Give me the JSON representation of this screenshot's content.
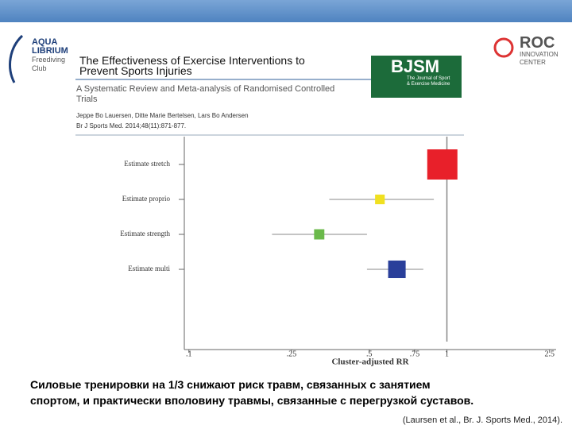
{
  "header": {
    "logo_left": [
      "AQUA",
      "LIBRIUM",
      "Freediving",
      "Club"
    ],
    "title": "The Effectiveness of Exercise Interventions to Prevent Sports Injuries",
    "subtitle": "A Systematic Review and Meta-analysis of Randomised Controlled Trials",
    "authors": "Jeppe Bo Lauersen, Ditte Marie Bertelsen, Lars Bo Andersen",
    "journal": "Br J Sports Med. 2014;48(11):871-877.",
    "journal_logo": [
      "BJSM",
      "The Journal of Sport",
      "& Exercise Medicine"
    ],
    "logo_right": [
      "ROC",
      "INNOVATION",
      "CENTER"
    ]
  },
  "chart_data": {
    "type": "forest",
    "categories": [
      "Estimate stretch",
      "Estimate proprio",
      "Estimate strength",
      "Estimate multi"
    ],
    "values": [
      0.96,
      0.55,
      0.32,
      0.64
    ],
    "lower": [
      0.85,
      0.35,
      0.21,
      0.49
    ],
    "upper": [
      1.09,
      0.89,
      0.49,
      0.81
    ],
    "weights": [
      100,
      32,
      34,
      58
    ],
    "colors": [
      "#e8202a",
      "#f0e020",
      "#6ab94a",
      "#2a3f9a"
    ],
    "xlabel": "Cluster-adjusted RR",
    "xscale": "log",
    "xlim": [
      0.096,
      2.65
    ],
    "xticks": [
      {
        "value": 0.1,
        "label": ".1"
      },
      {
        "value": 0.25,
        "label": ".25"
      },
      {
        "value": 0.5,
        "label": ".5"
      },
      {
        "value": 0.75,
        "label": ".75"
      },
      1,
      2.5
    ],
    "reference": 1
  },
  "caption": [
    "Силовые тренировки на 1/3 снижают риск травм, связанных с занятием",
    "спортом, и практически вполовину травмы, связанные с перегрузкой суставов."
  ],
  "citation": "(Laursen et al., Br. J. Sports Med., 2014)."
}
